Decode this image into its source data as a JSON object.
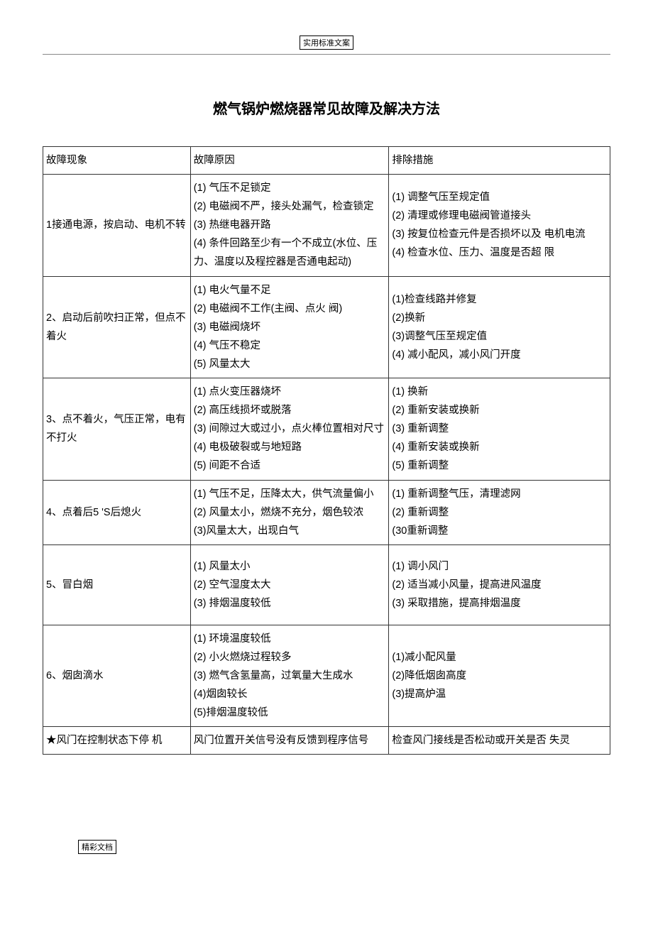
{
  "header_label": "实用标准文案",
  "title": "燃气锅炉燃烧器常见故障及解决方法",
  "footer_label": "精彩文档",
  "columns": [
    "故障现象",
    "故障原因",
    "排除措施"
  ],
  "rows": [
    {
      "symptom": "1接通电源，按启动、电机不转",
      "cause": "(1) 气压不足锁定\n(2) 电磁阀不严，接头处漏气，检查锁定\n(3) 热继电器开路\n(4) 条件回路至少有一个不成立(水位、压力、温度以及程控器是否通电起动)",
      "remedy": "(1) 调整气压至规定值\n(2) 清理或修理电磁阀管道接头\n(3) 按复位检查元件是否损坏以及 电机电流\n(4) 检查水位、压力、温度是否超 限"
    },
    {
      "symptom": "2、启动后前吹扫正常，但点不着火",
      "cause": "(1) 电火气量不足\n(2) 电磁阀不工作(主阀、点火 阀)\n(3) 电磁阀烧坏\n(4) 气压不稳定\n(5) 风量太大",
      "remedy": "(1)检查线路并修复\n(2)换新\n(3)调整气压至规定值\n(4) 减小配风，减小风门开度"
    },
    {
      "symptom": "3、点不着火，气压正常，电有不打火",
      "cause": "(1) 点火变压器烧坏\n(2) 高压线损坏或脱落\n(3) 间隙过大或过小，点火棒位置相对尺寸\n(4) 电极破裂或与地短路\n(5) 间距不合适",
      "remedy": "(1) 换新\n(2) 重新安装或换新\n(3) 重新调整\n(4) 重新安装或换新\n(5) 重新调整"
    },
    {
      "symptom": "4、点着后5 'S后熄火",
      "cause": "(1) 气压不足，压降太大，供气流量偏小\n(2) 风量太小，燃烧不充分，烟色较浓\n(3)风量太大，出现白气",
      "remedy": "(1) 重新调整气压，清理滤网\n(2) 重新调整\n(30重新调整"
    },
    {
      "symptom": "5、冒白烟",
      "cause": "(1) 风量太小\n(2) 空气湿度太大\n(3) 排烟温度较低",
      "remedy": "(1) 调小风门\n(2) 适当减小风量，提高进风温度\n(3) 采取措施，提高排烟温度"
    },
    {
      "symptom": "6、烟囱滴水",
      "cause": "(1) 环境温度较低\n(2) 小火燃烧过程较多\n(3) 燃气含氢量高，过氧量大生成水\n(4)烟囱较长\n(5)排烟温度较低",
      "remedy": "(1)减小配风量\n(2)降低烟囱高度\n(3)提高炉温"
    },
    {
      "symptom": "★风门在控制状态下停 机",
      "cause": "风门位置开关信号没有反馈到程序信号",
      "remedy": "检查风门接线是否松动或开关是否 失灵"
    }
  ]
}
